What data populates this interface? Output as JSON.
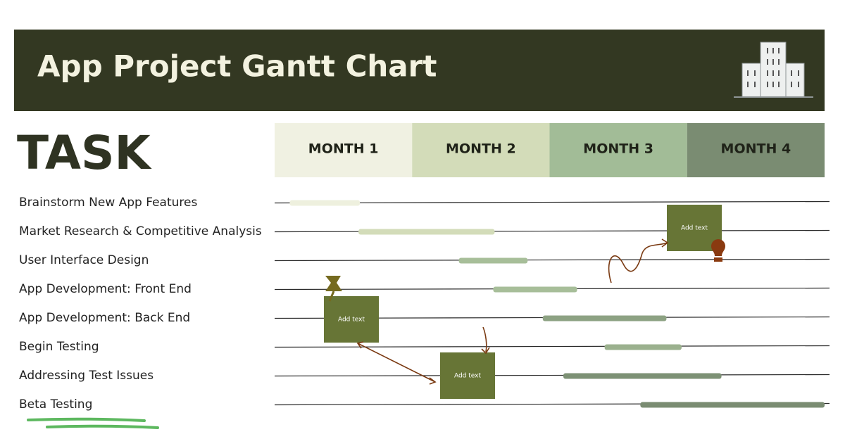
{
  "header": {
    "title": "App Project Gantt Chart"
  },
  "task_heading": "TASK",
  "months": [
    "MONTH 1",
    "MONTH 2",
    "MONTH 3",
    "MONTH 4"
  ],
  "month_colors": [
    "#f0f1e2",
    "#d3dcb9",
    "#a2bc97",
    "#7a8c72"
  ],
  "tasks": [
    {
      "label": "Brainstorm New App Features",
      "start": 0.11,
      "end": 0.62,
      "color": "#eef0de"
    },
    {
      "label": "Market Research & Competitive Analysis",
      "start": 0.61,
      "end": 1.6,
      "color": "#d3dcb9"
    },
    {
      "label": "User Interface Design",
      "start": 1.34,
      "end": 1.84,
      "color": "#a7be99"
    },
    {
      "label": "App Development: Front End",
      "start": 1.59,
      "end": 2.2,
      "color": "#a7be99"
    },
    {
      "label": "App Development: Back End",
      "start": 1.95,
      "end": 2.85,
      "color": "#8da283"
    },
    {
      "label": "Begin Testing",
      "start": 2.4,
      "end": 2.96,
      "color": "#9bb18e"
    },
    {
      "label": "Addressing Test Issues",
      "start": 2.1,
      "end": 3.25,
      "color": "#7d9175"
    },
    {
      "label": "Beta Testing",
      "start": 2.66,
      "end": 4,
      "color": "#7a8c72"
    }
  ],
  "notes": [
    "Add text",
    "Add text",
    "Add text"
  ]
}
